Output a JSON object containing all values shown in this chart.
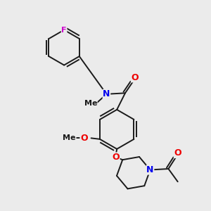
{
  "background_color": "#ebebeb",
  "bond_color": "#1a1a1a",
  "atom_colors": {
    "F": "#cc00cc",
    "N": "#0000ee",
    "O": "#ee0000",
    "C": "#1a1a1a"
  },
  "figsize": [
    3.0,
    3.0
  ],
  "dpi": 100
}
